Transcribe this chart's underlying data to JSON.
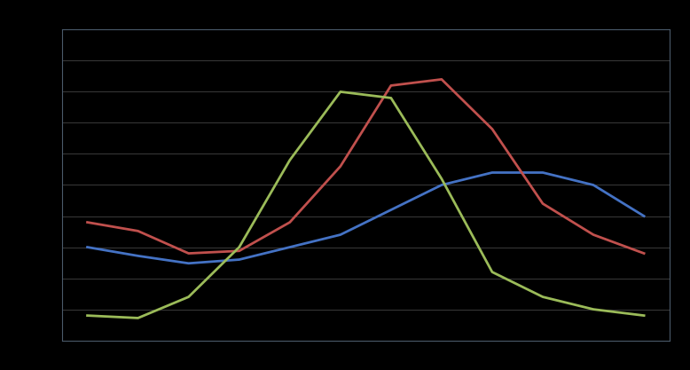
{
  "months": [
    1,
    2,
    3,
    4,
    5,
    6,
    7,
    8,
    9,
    10,
    11,
    12
  ],
  "blue": [
    7.5,
    6.8,
    6.2,
    6.5,
    7.5,
    8.5,
    10.5,
    12.5,
    13.5,
    13.5,
    12.5,
    10.0
  ],
  "red": [
    9.5,
    8.8,
    7.0,
    7.2,
    9.5,
    14.0,
    20.5,
    21.0,
    17.0,
    11.0,
    8.5,
    7.0
  ],
  "green": [
    2.0,
    1.8,
    3.5,
    7.5,
    14.5,
    20.0,
    19.5,
    13.0,
    5.5,
    3.5,
    2.5,
    2.0
  ],
  "blue_color": "#4472C4",
  "red_color": "#C0504D",
  "green_color": "#9BBB59",
  "background_color": "#000000",
  "plot_bg_color": "#000000",
  "grid_color": "#3A3A3A",
  "line_width": 2.0,
  "ylim": [
    0,
    25
  ],
  "xlim_min": 0.5,
  "xlim_max": 12.5,
  "yticks": [
    0,
    2.5,
    5,
    7.5,
    10,
    12.5,
    15,
    17.5,
    20,
    22.5,
    25
  ],
  "xticks": [
    1,
    2,
    3,
    4,
    5,
    6,
    7,
    8,
    9,
    10,
    11,
    12
  ]
}
